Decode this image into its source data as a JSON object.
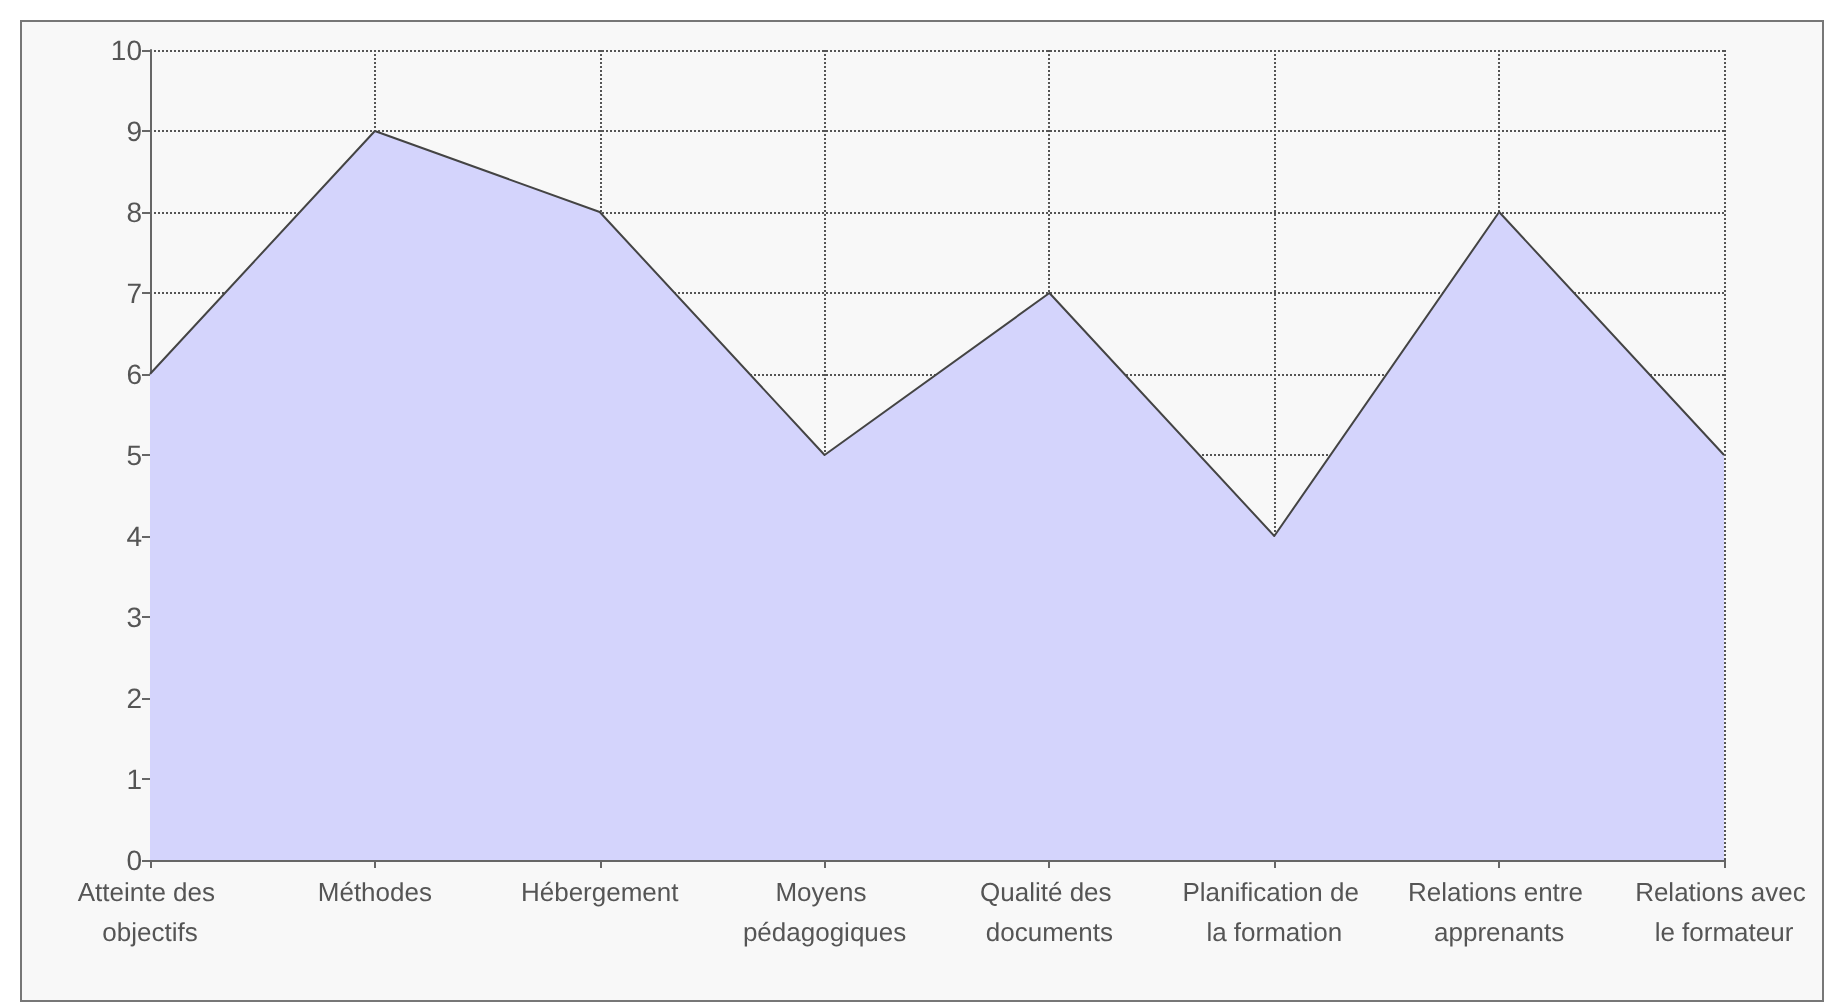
{
  "chart_data": {
    "type": "area",
    "categories": [
      "Atteinte des objectifs",
      "Méthodes",
      "Hébergement",
      "Moyens pédagogiques",
      "Qualité des documents",
      "Planification de la formation",
      "Relations entre apprenants",
      "Relations avec le formateur"
    ],
    "series": [
      {
        "color": "#d4d4fc",
        "values": [
          6,
          9,
          8,
          5,
          7,
          4,
          8,
          5
        ]
      }
    ],
    "ylim": [
      0,
      10
    ],
    "yticks": [
      0,
      1,
      2,
      3,
      4,
      5,
      6,
      7,
      8,
      9,
      10
    ],
    "grid": true,
    "line_style": "dotted",
    "marker": "none"
  }
}
